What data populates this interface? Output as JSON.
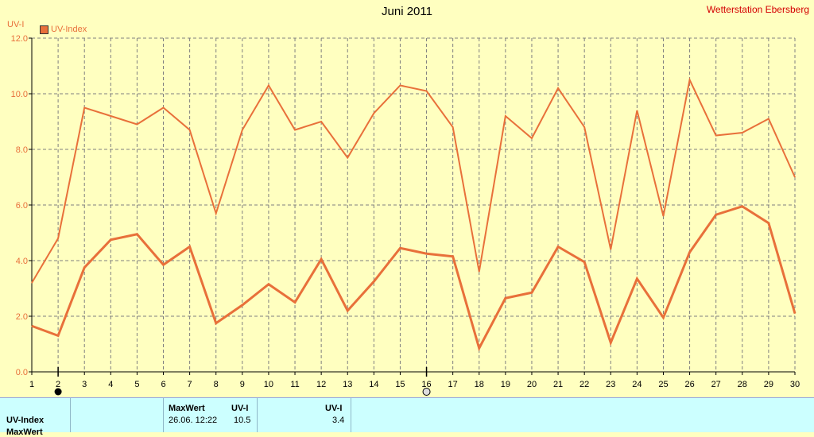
{
  "header": {
    "title": "Juni 2011",
    "station": "Wetterstation Ebersberg",
    "y_unit": "UV-I",
    "legend_label": "UV-Index"
  },
  "colors": {
    "background": "#ffffc0",
    "series": "#e8703a",
    "grid": "#7f7f7f",
    "table_bg": "#ccffff"
  },
  "chart_data": {
    "type": "line",
    "title": "Juni 2011",
    "ylabel": "UV-I",
    "ylim": [
      0,
      12
    ],
    "yticks": [
      "0.0",
      "2.0",
      "4.0",
      "6.0",
      "8.0",
      "10.0",
      "12.0"
    ],
    "xlim": [
      1,
      30
    ],
    "x": [
      1,
      2,
      3,
      4,
      5,
      6,
      7,
      8,
      9,
      10,
      11,
      12,
      13,
      14,
      15,
      16,
      17,
      18,
      19,
      20,
      21,
      22,
      23,
      24,
      25,
      26,
      27,
      28,
      29,
      30
    ],
    "grid": true,
    "legend": "top-left",
    "series": [
      {
        "name": "UV-Index",
        "values": [
          3.2,
          4.8,
          9.5,
          9.2,
          8.9,
          9.5,
          8.7,
          5.7,
          8.7,
          10.3,
          8.7,
          9.0,
          7.7,
          9.3,
          10.3,
          10.1,
          8.8,
          3.6,
          9.2,
          8.4,
          10.2,
          8.8,
          4.4,
          9.4,
          5.6,
          10.5,
          8.5,
          8.6,
          9.1,
          7.0
        ]
      },
      {
        "values": [
          1.65,
          1.3,
          3.75,
          4.75,
          4.95,
          3.85,
          4.5,
          1.75,
          2.4,
          3.15,
          2.5,
          4.05,
          2.2,
          3.25,
          4.45,
          4.25,
          4.15,
          0.85,
          2.65,
          2.85,
          4.5,
          3.95,
          1.05,
          3.35,
          1.95,
          4.3,
          5.65,
          5.95,
          5.35,
          2.1
        ]
      }
    ]
  },
  "table": {
    "row_label": "UV-Index",
    "row_label_2": "MaxWert",
    "col_maxwert": "MaxWert",
    "col_uvi": "UV-I",
    "max_datetime": "26.06.  12:22",
    "max_value": "10.5",
    "col_uvi_2": "UV-I",
    "avg_value": "3.4"
  }
}
